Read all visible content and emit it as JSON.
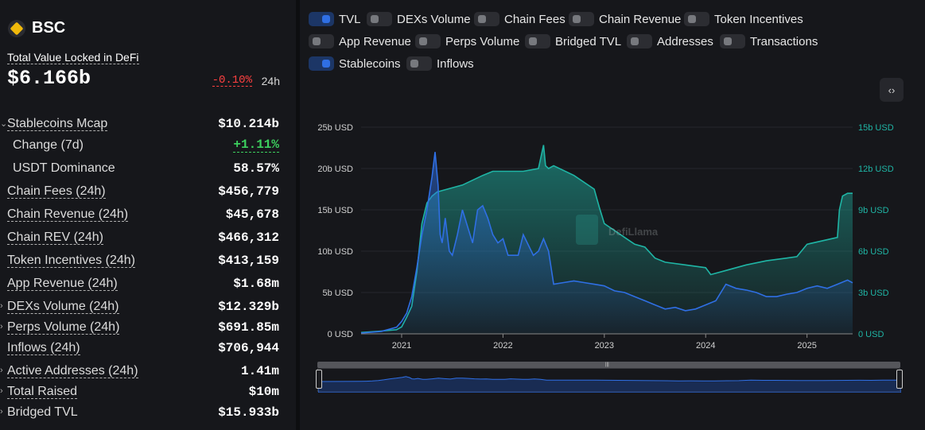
{
  "header": {
    "chain_name": "BSC"
  },
  "tvl": {
    "label": "Total Value Locked in DeFi",
    "value": "$6.166b",
    "change": "-0.10%",
    "period": "24h"
  },
  "stats": [
    {
      "label": "Stablecoins Mcap",
      "value": "$10.214b",
      "caret": "⌄"
    },
    {
      "label": "Change (7d)",
      "value": "+1.11%"
    },
    {
      "label": "USDT Dominance",
      "value": "58.57%"
    },
    {
      "label": "Chain Fees (24h)",
      "value": "$456,779"
    },
    {
      "label": "Chain Revenue (24h)",
      "value": "$45,678"
    },
    {
      "label": "Chain REV (24h)",
      "value": "$466,312"
    },
    {
      "label": "Token Incentives (24h)",
      "value": "$413,159"
    },
    {
      "label": "App Revenue (24h)",
      "value": "$1.68m"
    },
    {
      "label": "DEXs Volume (24h)",
      "value": "$12.329b",
      "caret": "›"
    },
    {
      "label": "Perps Volume (24h)",
      "value": "$691.85m",
      "caret": "›"
    },
    {
      "label": "Inflows (24h)",
      "value": "$706,944"
    },
    {
      "label": "Active Addresses (24h)",
      "value": "1.41m",
      "caret": "›"
    },
    {
      "label": "Total Raised",
      "value": "$10m",
      "caret": "›"
    },
    {
      "label": "Bridged TVL",
      "value": "$15.933b",
      "caret": "›"
    }
  ],
  "toggles": [
    {
      "label": "TVL",
      "on": true
    },
    {
      "label": "DEXs Volume",
      "on": false
    },
    {
      "label": "Chain Fees",
      "on": false
    },
    {
      "label": "Chain Revenue",
      "on": false
    },
    {
      "label": "Token Incentives",
      "on": false
    },
    {
      "label": "App Revenue",
      "on": false
    },
    {
      "label": "Perps Volume",
      "on": false
    },
    {
      "label": "Bridged TVL",
      "on": false
    },
    {
      "label": "Addresses",
      "on": false
    },
    {
      "label": "Transactions",
      "on": false
    },
    {
      "label": "Stablecoins",
      "on": true
    },
    {
      "label": "Inflows",
      "on": false
    }
  ],
  "embed_icon": "code-icon",
  "embed_glyph": "‹›",
  "watermark": "DefiLlama",
  "brush_grip": "|||",
  "colors": {
    "tvl": "#2f6fe4",
    "stablecoins": "#1fb5a5",
    "negative": "#ff4040",
    "positive": "#3cd05e"
  },
  "chart_data": {
    "type": "area",
    "x_ticks": [
      "2021",
      "2022",
      "2023",
      "2024",
      "2025"
    ],
    "y_left_ticks": [
      "0 USD",
      "5b USD",
      "10b USD",
      "15b USD",
      "20b USD",
      "25b USD"
    ],
    "y_right_ticks": [
      "0 USD",
      "3b USD",
      "6b USD",
      "9b USD",
      "12b USD",
      "15b USD"
    ],
    "ylim_left": [
      0,
      25
    ],
    "ylim_right": [
      0,
      15
    ],
    "x_range": [
      2020.6,
      2025.45
    ],
    "series": [
      {
        "name": "TVL",
        "axis": "left",
        "unit": "b USD",
        "x": [
          2020.6,
          2020.8,
          2020.95,
          2021.0,
          2021.05,
          2021.1,
          2021.15,
          2021.2,
          2021.25,
          2021.3,
          2021.33,
          2021.36,
          2021.38,
          2021.4,
          2021.43,
          2021.47,
          2021.5,
          2021.55,
          2021.6,
          2021.65,
          2021.7,
          2021.75,
          2021.8,
          2021.85,
          2021.9,
          2021.95,
          2022.0,
          2022.05,
          2022.1,
          2022.15,
          2022.2,
          2022.3,
          2022.35,
          2022.4,
          2022.45,
          2022.5,
          2022.6,
          2022.7,
          2022.8,
          2022.9,
          2023.0,
          2023.1,
          2023.2,
          2023.3,
          2023.4,
          2023.5,
          2023.6,
          2023.7,
          2023.8,
          2023.9,
          2024.0,
          2024.1,
          2024.2,
          2024.3,
          2024.4,
          2024.5,
          2024.6,
          2024.7,
          2024.8,
          2024.9,
          2025.0,
          2025.1,
          2025.2,
          2025.3,
          2025.4,
          2025.45
        ],
        "values": [
          0.1,
          0.3,
          0.8,
          1.5,
          2.5,
          4.5,
          8,
          12,
          15,
          19,
          22,
          18,
          12,
          11,
          14,
          10,
          9.5,
          12,
          15,
          13,
          11,
          15,
          15.5,
          14,
          12,
          11,
          11.5,
          9.5,
          9.5,
          9.5,
          12,
          9.5,
          10,
          11.5,
          10,
          6,
          6.2,
          6.4,
          6.2,
          6.0,
          5.8,
          5.2,
          5.0,
          4.5,
          4.0,
          3.5,
          3.0,
          3.2,
          2.8,
          3.0,
          3.5,
          4.0,
          6.0,
          5.5,
          5.3,
          5.0,
          4.5,
          4.5,
          4.8,
          5.0,
          5.5,
          5.8,
          5.5,
          6.0,
          6.5,
          6.17
        ]
      },
      {
        "name": "Stablecoins",
        "axis": "right",
        "unit": "b USD",
        "x": [
          2020.6,
          2020.8,
          2020.95,
          2021.0,
          2021.05,
          2021.1,
          2021.15,
          2021.2,
          2021.25,
          2021.3,
          2021.35,
          2021.45,
          2021.6,
          2021.8,
          2021.9,
          2022.0,
          2022.2,
          2022.35,
          2022.4,
          2022.42,
          2022.45,
          2022.5,
          2022.7,
          2022.9,
          2022.95,
          2023.0,
          2023.1,
          2023.2,
          2023.3,
          2023.4,
          2023.5,
          2023.6,
          2023.8,
          2024.0,
          2024.03,
          2024.05,
          2024.2,
          2024.4,
          2024.6,
          2024.8,
          2024.9,
          2025.0,
          2025.3,
          2025.32,
          2025.35,
          2025.4,
          2025.45
        ],
        "values": [
          0.1,
          0.2,
          0.3,
          0.5,
          1.2,
          2.0,
          4.5,
          8,
          9.5,
          10,
          10.3,
          10.5,
          10.8,
          11.5,
          11.8,
          11.8,
          11.8,
          12.0,
          13.7,
          12.2,
          12.0,
          12.2,
          11.5,
          10.5,
          9.2,
          8.0,
          7.5,
          7.0,
          6.5,
          6.3,
          5.5,
          5.2,
          5.0,
          4.8,
          4.5,
          4.3,
          4.6,
          5.0,
          5.3,
          5.5,
          5.6,
          6.5,
          7.0,
          9.0,
          10.0,
          10.2,
          10.2
        ]
      }
    ]
  }
}
